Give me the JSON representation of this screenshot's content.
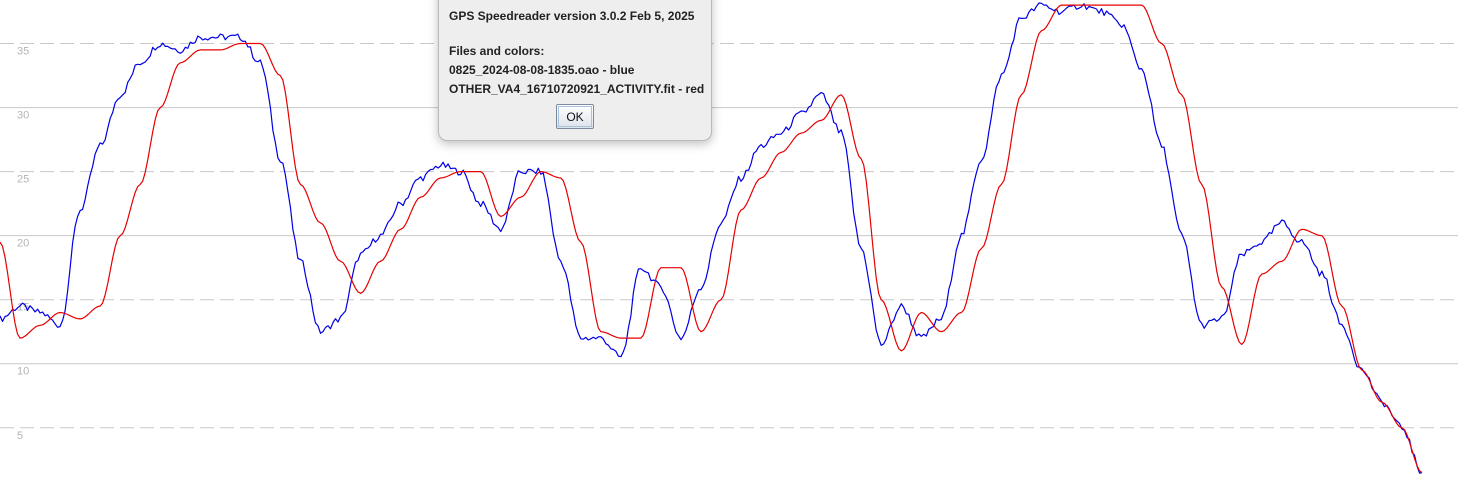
{
  "dialog": {
    "title_line": "GPS Speedreader version 3.0.2 Feb 5, 2025",
    "files_heading": "Files and colors:",
    "files": [
      {
        "label": "0825_2024-08-08-1835.oao - blue",
        "color": "#0000e6"
      },
      {
        "label": "OTHER_VA4_16710720921_ACTIVITY.fit - red",
        "color": "#e60000"
      }
    ],
    "ok_label": "OK"
  },
  "chart_data": {
    "type": "line",
    "title": "",
    "xlabel": "",
    "ylabel": "",
    "ylim": [
      1,
      38.4
    ],
    "y_ticks": [
      5,
      10,
      15,
      20,
      25,
      30,
      35
    ],
    "y_tick_labels": [
      "5",
      "10",
      "15",
      "20",
      "25",
      "30",
      "35"
    ],
    "grid": {
      "solid_at": [
        10,
        20,
        30
      ],
      "dashed_at": [
        5,
        15,
        25,
        35
      ]
    },
    "colors": {
      "grid_solid": "#c8c8c8",
      "grid_dashed": "#c8c8c8",
      "tick_label": "#b4b4b4"
    },
    "x": [
      0,
      20,
      40,
      60,
      80,
      100,
      120,
      140,
      160,
      180,
      200,
      220,
      240,
      260,
      280,
      300,
      320,
      340,
      360,
      380,
      400,
      420,
      440,
      460,
      480,
      500,
      520,
      540,
      560,
      580,
      600,
      620,
      640,
      660,
      680,
      700,
      720,
      740,
      760,
      780,
      800,
      820,
      840,
      860,
      880,
      900,
      920,
      940,
      960,
      980,
      1000,
      1020,
      1040,
      1060,
      1080,
      1100,
      1120,
      1140,
      1160,
      1180,
      1200,
      1220,
      1240,
      1260,
      1280,
      1300,
      1320,
      1340,
      1360,
      1380,
      1400,
      1420
    ],
    "series": [
      {
        "name": "0825_2024-08-08-1835.oao",
        "color": "#0000e6",
        "values": [
          13.5,
          14.5,
          14.0,
          13.0,
          22.0,
          27.0,
          31.0,
          33.5,
          35.0,
          34.5,
          35.5,
          35.5,
          35.5,
          33.5,
          26.0,
          18.0,
          12.5,
          13.5,
          18.5,
          20.0,
          22.5,
          24.5,
          25.5,
          25.0,
          22.5,
          20.5,
          25.0,
          25.0,
          18.0,
          12.0,
          12.0,
          10.5,
          17.5,
          16.0,
          12.0,
          16.0,
          21.0,
          24.5,
          27.0,
          28.0,
          29.5,
          31.0,
          28.0,
          19.0,
          11.5,
          14.5,
          12.0,
          13.5,
          20.0,
          26.0,
          32.5,
          37.0,
          38.0,
          37.5,
          38.0,
          37.5,
          36.5,
          33.0,
          27.0,
          20.0,
          13.0,
          13.5,
          18.5,
          19.5,
          21.0,
          19.5,
          17.0,
          13.0,
          9.5,
          7.0,
          5.0,
          1.5
        ]
      },
      {
        "name": "OTHER_VA4_16710720921_ACTIVITY.fit",
        "color": "#e60000",
        "values": [
          19.5,
          12.0,
          13.0,
          14.0,
          13.5,
          14.5,
          20.0,
          24.0,
          30.0,
          33.5,
          34.5,
          34.5,
          35.0,
          35.0,
          32.5,
          24.0,
          21.0,
          18.0,
          15.5,
          18.0,
          20.5,
          23.0,
          24.5,
          25.0,
          25.0,
          21.5,
          23.0,
          25.0,
          24.5,
          19.5,
          12.5,
          12.0,
          12.0,
          17.5,
          17.5,
          12.5,
          15.0,
          22.0,
          24.5,
          26.5,
          28.0,
          29.0,
          31.0,
          26.0,
          15.0,
          11.0,
          14.0,
          12.5,
          14.0,
          19.0,
          24.0,
          31.0,
          36.0,
          38.0,
          38.0,
          38.0,
          38.0,
          38.0,
          35.0,
          31.0,
          24.0,
          16.0,
          11.5,
          17.0,
          18.0,
          20.5,
          20.0,
          14.5,
          9.5,
          7.0,
          5.0,
          1.5
        ]
      }
    ]
  }
}
